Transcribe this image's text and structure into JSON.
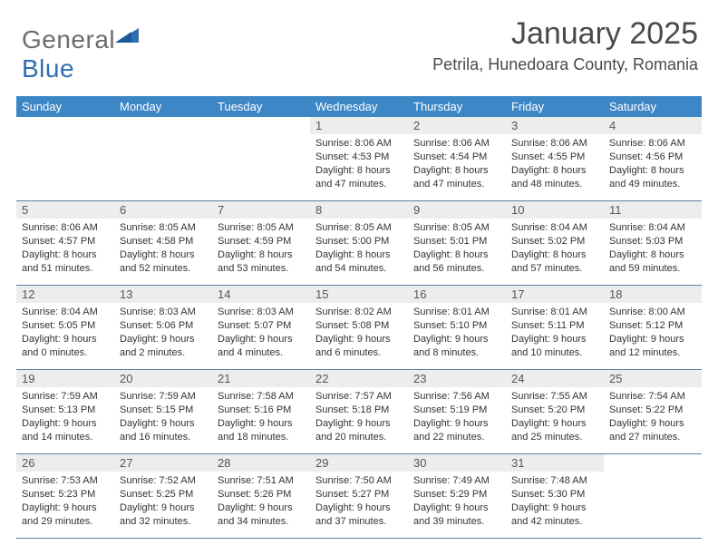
{
  "brand": {
    "word1": "General",
    "word2": "Blue",
    "triangle_color": "#2f6fb0"
  },
  "header": {
    "title": "January 2025",
    "location": "Petrila, Hunedoara County, Romania"
  },
  "colors": {
    "header_bg": "#3e87c6",
    "header_text": "#ffffff",
    "daynum_bg": "#eceded",
    "row_border": "#5f7da0",
    "body_text": "#333333"
  },
  "calendar": {
    "day_headers": [
      "Sunday",
      "Monday",
      "Tuesday",
      "Wednesday",
      "Thursday",
      "Friday",
      "Saturday"
    ],
    "weeks": [
      [
        null,
        null,
        null,
        {
          "num": "1",
          "sunrise": "Sunrise: 8:06 AM",
          "sunset": "Sunset: 4:53 PM",
          "daylight": "Daylight: 8 hours and 47 minutes."
        },
        {
          "num": "2",
          "sunrise": "Sunrise: 8:06 AM",
          "sunset": "Sunset: 4:54 PM",
          "daylight": "Daylight: 8 hours and 47 minutes."
        },
        {
          "num": "3",
          "sunrise": "Sunrise: 8:06 AM",
          "sunset": "Sunset: 4:55 PM",
          "daylight": "Daylight: 8 hours and 48 minutes."
        },
        {
          "num": "4",
          "sunrise": "Sunrise: 8:06 AM",
          "sunset": "Sunset: 4:56 PM",
          "daylight": "Daylight: 8 hours and 49 minutes."
        }
      ],
      [
        {
          "num": "5",
          "sunrise": "Sunrise: 8:06 AM",
          "sunset": "Sunset: 4:57 PM",
          "daylight": "Daylight: 8 hours and 51 minutes."
        },
        {
          "num": "6",
          "sunrise": "Sunrise: 8:05 AM",
          "sunset": "Sunset: 4:58 PM",
          "daylight": "Daylight: 8 hours and 52 minutes."
        },
        {
          "num": "7",
          "sunrise": "Sunrise: 8:05 AM",
          "sunset": "Sunset: 4:59 PM",
          "daylight": "Daylight: 8 hours and 53 minutes."
        },
        {
          "num": "8",
          "sunrise": "Sunrise: 8:05 AM",
          "sunset": "Sunset: 5:00 PM",
          "daylight": "Daylight: 8 hours and 54 minutes."
        },
        {
          "num": "9",
          "sunrise": "Sunrise: 8:05 AM",
          "sunset": "Sunset: 5:01 PM",
          "daylight": "Daylight: 8 hours and 56 minutes."
        },
        {
          "num": "10",
          "sunrise": "Sunrise: 8:04 AM",
          "sunset": "Sunset: 5:02 PM",
          "daylight": "Daylight: 8 hours and 57 minutes."
        },
        {
          "num": "11",
          "sunrise": "Sunrise: 8:04 AM",
          "sunset": "Sunset: 5:03 PM",
          "daylight": "Daylight: 8 hours and 59 minutes."
        }
      ],
      [
        {
          "num": "12",
          "sunrise": "Sunrise: 8:04 AM",
          "sunset": "Sunset: 5:05 PM",
          "daylight": "Daylight: 9 hours and 0 minutes."
        },
        {
          "num": "13",
          "sunrise": "Sunrise: 8:03 AM",
          "sunset": "Sunset: 5:06 PM",
          "daylight": "Daylight: 9 hours and 2 minutes."
        },
        {
          "num": "14",
          "sunrise": "Sunrise: 8:03 AM",
          "sunset": "Sunset: 5:07 PM",
          "daylight": "Daylight: 9 hours and 4 minutes."
        },
        {
          "num": "15",
          "sunrise": "Sunrise: 8:02 AM",
          "sunset": "Sunset: 5:08 PM",
          "daylight": "Daylight: 9 hours and 6 minutes."
        },
        {
          "num": "16",
          "sunrise": "Sunrise: 8:01 AM",
          "sunset": "Sunset: 5:10 PM",
          "daylight": "Daylight: 9 hours and 8 minutes."
        },
        {
          "num": "17",
          "sunrise": "Sunrise: 8:01 AM",
          "sunset": "Sunset: 5:11 PM",
          "daylight": "Daylight: 9 hours and 10 minutes."
        },
        {
          "num": "18",
          "sunrise": "Sunrise: 8:00 AM",
          "sunset": "Sunset: 5:12 PM",
          "daylight": "Daylight: 9 hours and 12 minutes."
        }
      ],
      [
        {
          "num": "19",
          "sunrise": "Sunrise: 7:59 AM",
          "sunset": "Sunset: 5:13 PM",
          "daylight": "Daylight: 9 hours and 14 minutes."
        },
        {
          "num": "20",
          "sunrise": "Sunrise: 7:59 AM",
          "sunset": "Sunset: 5:15 PM",
          "daylight": "Daylight: 9 hours and 16 minutes."
        },
        {
          "num": "21",
          "sunrise": "Sunrise: 7:58 AM",
          "sunset": "Sunset: 5:16 PM",
          "daylight": "Daylight: 9 hours and 18 minutes."
        },
        {
          "num": "22",
          "sunrise": "Sunrise: 7:57 AM",
          "sunset": "Sunset: 5:18 PM",
          "daylight": "Daylight: 9 hours and 20 minutes."
        },
        {
          "num": "23",
          "sunrise": "Sunrise: 7:56 AM",
          "sunset": "Sunset: 5:19 PM",
          "daylight": "Daylight: 9 hours and 22 minutes."
        },
        {
          "num": "24",
          "sunrise": "Sunrise: 7:55 AM",
          "sunset": "Sunset: 5:20 PM",
          "daylight": "Daylight: 9 hours and 25 minutes."
        },
        {
          "num": "25",
          "sunrise": "Sunrise: 7:54 AM",
          "sunset": "Sunset: 5:22 PM",
          "daylight": "Daylight: 9 hours and 27 minutes."
        }
      ],
      [
        {
          "num": "26",
          "sunrise": "Sunrise: 7:53 AM",
          "sunset": "Sunset: 5:23 PM",
          "daylight": "Daylight: 9 hours and 29 minutes."
        },
        {
          "num": "27",
          "sunrise": "Sunrise: 7:52 AM",
          "sunset": "Sunset: 5:25 PM",
          "daylight": "Daylight: 9 hours and 32 minutes."
        },
        {
          "num": "28",
          "sunrise": "Sunrise: 7:51 AM",
          "sunset": "Sunset: 5:26 PM",
          "daylight": "Daylight: 9 hours and 34 minutes."
        },
        {
          "num": "29",
          "sunrise": "Sunrise: 7:50 AM",
          "sunset": "Sunset: 5:27 PM",
          "daylight": "Daylight: 9 hours and 37 minutes."
        },
        {
          "num": "30",
          "sunrise": "Sunrise: 7:49 AM",
          "sunset": "Sunset: 5:29 PM",
          "daylight": "Daylight: 9 hours and 39 minutes."
        },
        {
          "num": "31",
          "sunrise": "Sunrise: 7:48 AM",
          "sunset": "Sunset: 5:30 PM",
          "daylight": "Daylight: 9 hours and 42 minutes."
        },
        null
      ]
    ]
  }
}
